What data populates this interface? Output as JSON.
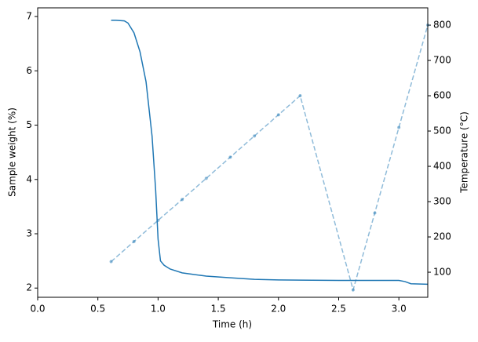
{
  "chart_data": {
    "type": "line",
    "xlabel": "Time (h)",
    "ylabel": "Sample weight (%)",
    "y2label": "Temperature (°C)",
    "xlim": [
      0,
      3.24
    ],
    "ylim": [
      1.83,
      7.16
    ],
    "y2lim": [
      29,
      849
    ],
    "xticks": [
      {
        "value": 0,
        "label": "0.0"
      },
      0.5,
      {
        "value": 1,
        "label": "1.0"
      },
      1.5,
      {
        "value": 2,
        "label": "2.0"
      },
      2.5,
      {
        "value": 3,
        "label": "3.0"
      }
    ],
    "yticks": [
      2,
      3,
      4,
      5,
      6,
      7
    ],
    "y2ticks": [
      100,
      200,
      300,
      400,
      500,
      600,
      700,
      800
    ],
    "series": [
      {
        "color": "#1f77b4",
        "style": "solid",
        "x": [
          0.61,
          0.65,
          0.72,
          0.75,
          0.8,
          0.85,
          0.9,
          0.95,
          0.98,
          1.0,
          1.02,
          1.05,
          1.1,
          1.2,
          1.4,
          1.6,
          1.8,
          2.0,
          2.5,
          3.0,
          3.05,
          3.1,
          3.24
        ],
        "values": [
          6.93,
          6.93,
          6.92,
          6.88,
          6.7,
          6.35,
          5.8,
          4.8,
          3.8,
          2.9,
          2.5,
          2.42,
          2.35,
          2.28,
          2.22,
          2.19,
          2.16,
          2.15,
          2.14,
          2.14,
          2.12,
          2.08,
          2.07
        ]
      },
      {
        "color": "#1f77b4",
        "style": "dashed",
        "axis": "y2",
        "opacity": 0.5,
        "markers": true,
        "x": [
          0.61,
          0.8,
          1.0,
          1.2,
          1.4,
          1.6,
          1.8,
          2.0,
          2.18,
          2.62,
          2.8,
          3.0,
          3.24
        ],
        "values": [
          130,
          187,
          247,
          306,
          366,
          426,
          486,
          546,
          600,
          50,
          268,
          510,
          800
        ]
      }
    ]
  }
}
